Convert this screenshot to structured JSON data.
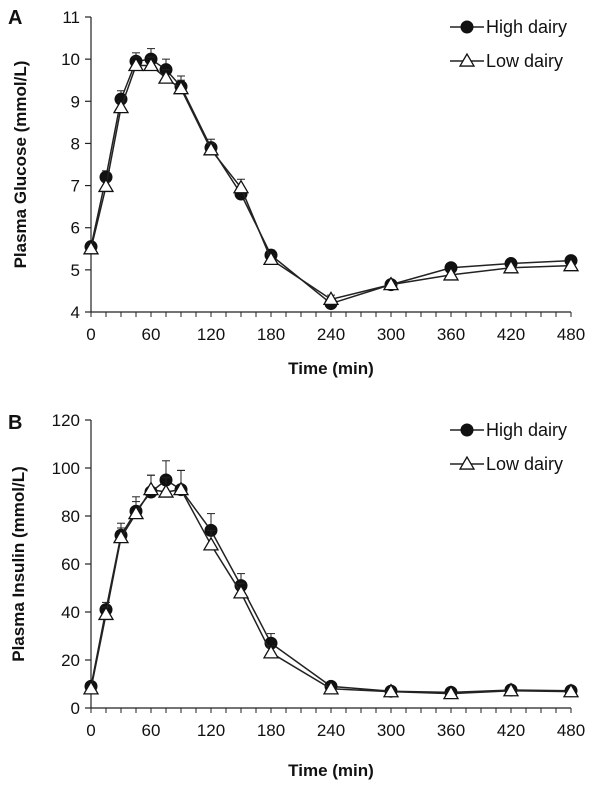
{
  "chart_data": [
    {
      "panel": "A",
      "type": "line",
      "xlabel": "Time (min)",
      "ylabel": "Plasma Glucose (mmol/L)",
      "xlim": [
        0,
        480
      ],
      "ylim": [
        4,
        11
      ],
      "xticks": [
        0,
        60,
        120,
        180,
        240,
        300,
        360,
        420,
        480
      ],
      "yticks": [
        4,
        5,
        6,
        7,
        8,
        9,
        10,
        11
      ],
      "grid": false,
      "legend_position": "top-right",
      "series": [
        {
          "name": "High dairy",
          "marker": "filled-circle",
          "x": [
            0,
            15,
            30,
            45,
            60,
            75,
            90,
            120,
            150,
            180,
            240,
            300,
            360,
            420,
            480
          ],
          "y": [
            5.55,
            7.2,
            9.05,
            9.95,
            10.0,
            9.75,
            9.35,
            7.9,
            6.8,
            5.35,
            4.2,
            4.65,
            5.05,
            5.15,
            5.22
          ],
          "err": [
            0.1,
            0.15,
            0.2,
            0.2,
            0.25,
            0.25,
            0.25,
            0.2,
            0.15,
            0.12,
            0.1,
            0.06,
            0.06,
            0.06,
            0.06
          ]
        },
        {
          "name": "Low dairy",
          "marker": "open-triangle",
          "x": [
            0,
            15,
            30,
            45,
            60,
            75,
            90,
            120,
            150,
            180,
            240,
            300,
            360,
            420,
            480
          ],
          "y": [
            5.5,
            6.98,
            8.85,
            9.85,
            9.85,
            9.55,
            9.3,
            7.85,
            6.95,
            5.25,
            4.3,
            4.65,
            4.88,
            5.05,
            5.1
          ],
          "err": [
            0.08,
            0.12,
            0.15,
            0.2,
            0.2,
            0.2,
            0.2,
            0.15,
            0.2,
            0.1,
            0.1,
            0.05,
            0.05,
            0.05,
            0.05
          ]
        }
      ]
    },
    {
      "panel": "B",
      "type": "line",
      "xlabel": "Time (min)",
      "ylabel": "Plasma Insulin (mmol/L)",
      "xlim": [
        0,
        480
      ],
      "ylim": [
        0,
        120
      ],
      "xticks": [
        0,
        60,
        120,
        180,
        240,
        300,
        360,
        420,
        480
      ],
      "yticks": [
        0,
        20,
        40,
        60,
        80,
        100,
        120
      ],
      "grid": false,
      "legend_position": "top-right",
      "series": [
        {
          "name": "High dairy",
          "marker": "filled-circle",
          "x": [
            0,
            15,
            30,
            45,
            60,
            75,
            90,
            120,
            150,
            180,
            240,
            300,
            360,
            420,
            480
          ],
          "y": [
            9,
            41,
            72,
            82,
            90,
            95,
            91,
            74,
            51,
            27,
            9,
            7,
            6.5,
            7.5,
            7.2
          ],
          "err": [
            1,
            3,
            5,
            6,
            7,
            8,
            8,
            7,
            5,
            4,
            1,
            1,
            1,
            1,
            1
          ]
        },
        {
          "name": "Low dairy",
          "marker": "open-triangle",
          "x": [
            0,
            15,
            30,
            45,
            60,
            75,
            90,
            120,
            150,
            180,
            240,
            300,
            360,
            420,
            480
          ],
          "y": [
            8,
            39,
            71,
            81,
            91,
            90,
            91,
            68,
            48,
            23,
            8,
            6.8,
            6,
            7.2,
            6.8
          ],
          "err": [
            1,
            3,
            4,
            5,
            6,
            6,
            8,
            6,
            4,
            3,
            1,
            1,
            1,
            1,
            1
          ]
        }
      ]
    }
  ]
}
